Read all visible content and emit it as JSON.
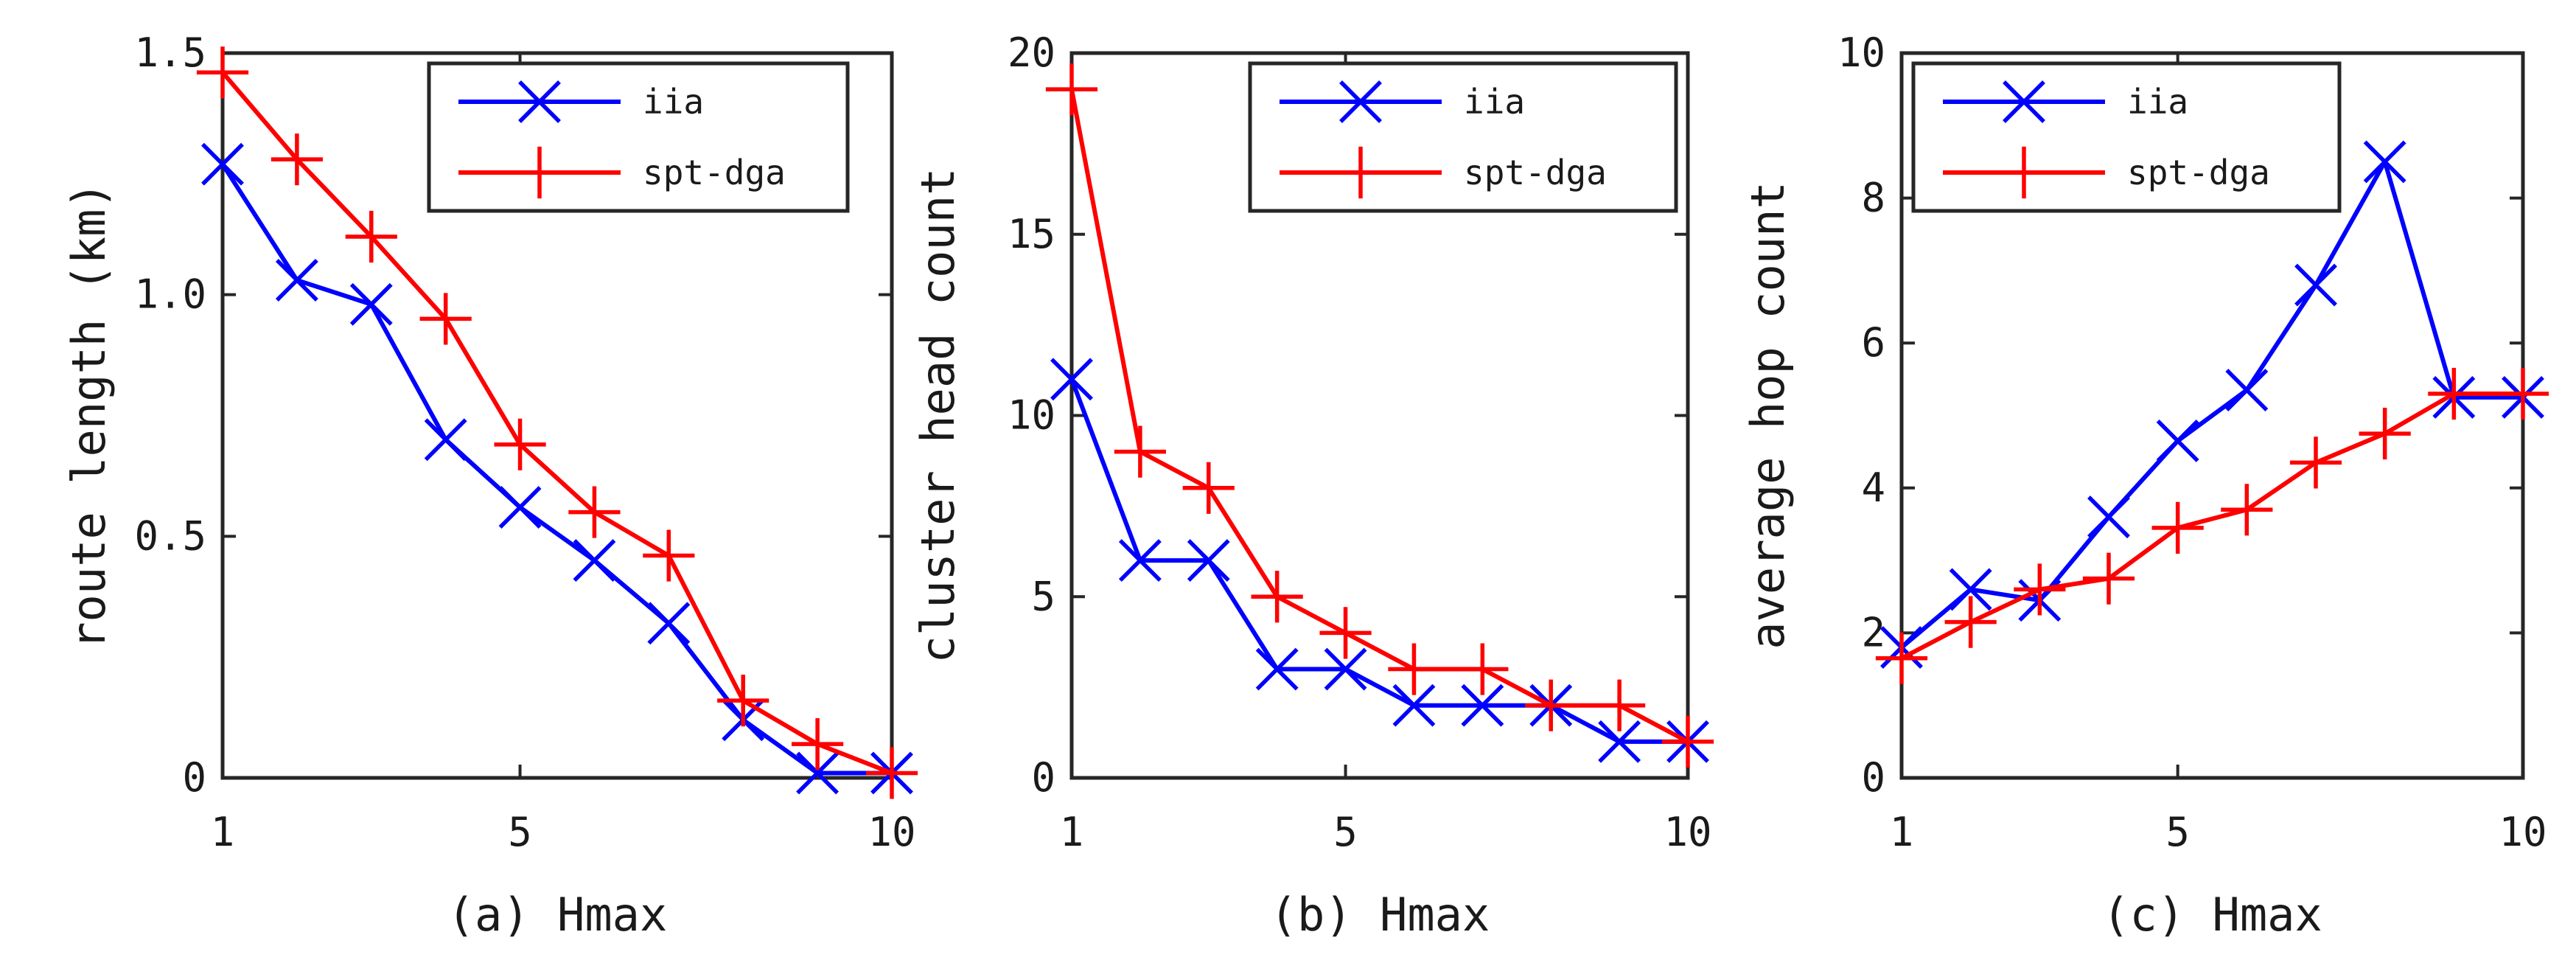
{
  "chart_data": [
    {
      "type": "line",
      "panel": "a",
      "xlabel": "(a) Hmax",
      "ylabel": "route length (km)",
      "xlim": [
        1,
        10
      ],
      "ylim": [
        0,
        1.5
      ],
      "xticks": [
        1,
        5,
        10
      ],
      "xtick_labels": [
        "1",
        "5",
        "10"
      ],
      "yticks": [
        0,
        0.5,
        1.0,
        1.5
      ],
      "ytick_labels": [
        "0",
        "0.5",
        "1.0",
        "1.5"
      ],
      "legend_position": "top-right",
      "grid": false,
      "x": [
        1,
        2,
        3,
        4,
        5,
        6,
        7,
        8,
        9,
        10
      ],
      "series": [
        {
          "name": "iia",
          "color": "#0000ff",
          "marker": "x",
          "values": [
            1.27,
            1.03,
            0.98,
            0.7,
            0.56,
            0.45,
            0.32,
            0.12,
            0.01,
            0.01
          ]
        },
        {
          "name": "spt-dga",
          "color": "#ff0000",
          "marker": "+",
          "values": [
            1.46,
            1.28,
            1.12,
            0.95,
            0.69,
            0.55,
            0.46,
            0.16,
            0.07,
            0.01
          ]
        }
      ]
    },
    {
      "type": "line",
      "panel": "b",
      "xlabel": "(b) Hmax",
      "ylabel": "cluster head count",
      "xlim": [
        1,
        10
      ],
      "ylim": [
        0,
        20
      ],
      "xticks": [
        1,
        5,
        10
      ],
      "xtick_labels": [
        "1",
        "5",
        "10"
      ],
      "yticks": [
        0,
        5,
        10,
        15,
        20
      ],
      "ytick_labels": [
        "0",
        "5",
        "10",
        "15",
        "20"
      ],
      "legend_position": "top-right",
      "grid": false,
      "x": [
        1,
        2,
        3,
        4,
        5,
        6,
        7,
        8,
        9,
        10
      ],
      "series": [
        {
          "name": "iia",
          "color": "#0000ff",
          "marker": "x",
          "values": [
            11,
            6,
            6,
            3,
            3,
            2,
            2,
            2,
            1,
            1
          ]
        },
        {
          "name": "spt-dga",
          "color": "#ff0000",
          "marker": "+",
          "values": [
            19,
            9,
            8,
            5,
            4,
            3,
            3,
            2,
            2,
            1
          ]
        }
      ]
    },
    {
      "type": "line",
      "panel": "c",
      "xlabel": "(c) Hmax",
      "ylabel": "average hop count",
      "xlim": [
        1,
        10
      ],
      "ylim": [
        0,
        10
      ],
      "xticks": [
        1,
        5,
        10
      ],
      "xtick_labels": [
        "1",
        "5",
        "10"
      ],
      "yticks": [
        0,
        2,
        4,
        6,
        8,
        10
      ],
      "ytick_labels": [
        "0",
        "2",
        "4",
        "6",
        "8",
        "10"
      ],
      "legend_position": "top-left",
      "grid": false,
      "x": [
        1,
        2,
        3,
        4,
        5,
        6,
        7,
        8,
        9,
        10
      ],
      "series": [
        {
          "name": "iia",
          "color": "#0000ff",
          "marker": "x",
          "values": [
            1.8,
            2.6,
            2.45,
            3.6,
            4.65,
            5.35,
            6.8,
            8.5,
            5.25,
            5.25
          ]
        },
        {
          "name": "spt-dga",
          "color": "#ff0000",
          "marker": "+",
          "values": [
            1.65,
            2.15,
            2.6,
            2.75,
            3.45,
            3.7,
            4.35,
            4.75,
            5.3,
            5.3
          ]
        }
      ]
    }
  ]
}
